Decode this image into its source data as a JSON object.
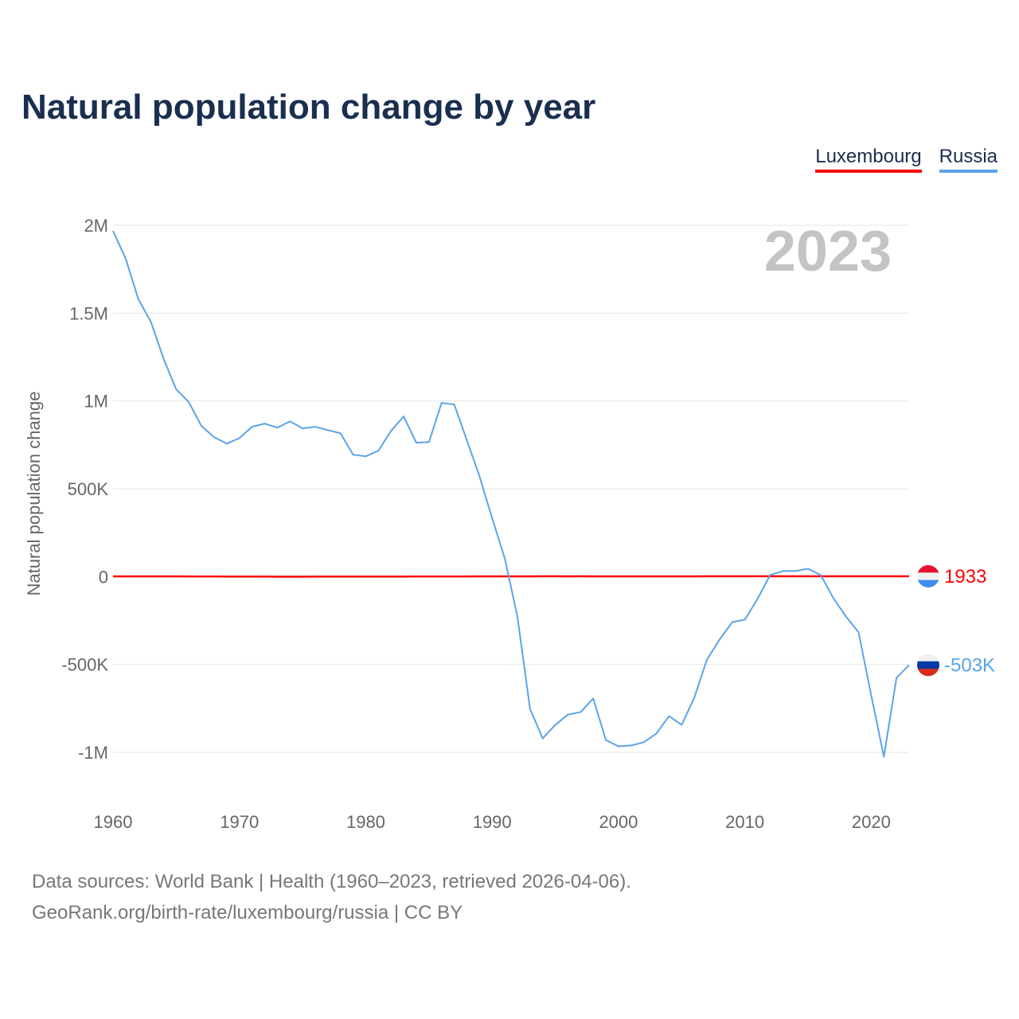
{
  "title": "Natural population change by year",
  "legend": [
    {
      "name": "Luxembourg",
      "color": "#ff0000"
    },
    {
      "name": "Russia",
      "color": "#5ba4e8"
    }
  ],
  "year_watermark": "2023",
  "footer": {
    "line1": "Data sources: World Bank | Health (1960–2023, retrieved 2026-04-06).",
    "line2": "GeoRank.org/birth-rate/luxembourg/russia | CC BY"
  },
  "chart_data": {
    "type": "line",
    "title": "Natural population change by year",
    "xlabel": "",
    "ylabel": "Natural population change",
    "xlim": [
      1960,
      2023
    ],
    "ylim": [
      -1000000,
      2000000
    ],
    "x_ticks": [
      1960,
      1970,
      1980,
      1990,
      2000,
      2010,
      2020
    ],
    "y_ticks": [
      {
        "v": 2000000,
        "label": "2M"
      },
      {
        "v": 1500000,
        "label": "1.5M"
      },
      {
        "v": 1000000,
        "label": "1M"
      },
      {
        "v": 500000,
        "label": "500K"
      },
      {
        "v": 0,
        "label": "0"
      },
      {
        "v": -500000,
        "label": "-500K"
      },
      {
        "v": -1000000,
        "label": "-1M"
      }
    ],
    "x": [
      1960,
      1961,
      1962,
      1963,
      1964,
      1965,
      1966,
      1967,
      1968,
      1969,
      1970,
      1971,
      1972,
      1973,
      1974,
      1975,
      1976,
      1977,
      1978,
      1979,
      1980,
      1981,
      1982,
      1983,
      1984,
      1985,
      1986,
      1987,
      1988,
      1989,
      1990,
      1991,
      1992,
      1993,
      1994,
      1995,
      1996,
      1997,
      1998,
      1999,
      2000,
      2001,
      2002,
      2003,
      2004,
      2005,
      2006,
      2007,
      2008,
      2009,
      2010,
      2011,
      2012,
      2013,
      2014,
      2015,
      2016,
      2017,
      2018,
      2019,
      2020,
      2021,
      2022,
      2023
    ],
    "series": [
      {
        "name": "Luxembourg",
        "color": "#ff0000",
        "end_label": "1933",
        "values": [
          1600,
          1500,
          1400,
          1500,
          1500,
          1400,
          1200,
          1000,
          800,
          500,
          300,
          200,
          100,
          0,
          0,
          50,
          100,
          100,
          150,
          300,
          400,
          500,
          600,
          600,
          700,
          800,
          900,
          1100,
          1200,
          1400,
          1500,
          1600,
          1700,
          1700,
          1800,
          1800,
          1700,
          1800,
          1700,
          1700,
          1600,
          1600,
          1500,
          1300,
          1700,
          1700,
          1700,
          1800,
          1900,
          1800,
          1900,
          1800,
          1800,
          2000,
          2100,
          2000,
          2100,
          1900,
          1900,
          2000,
          2300,
          2300,
          2100,
          1933
        ]
      },
      {
        "name": "Russia",
        "color": "#5ba4e8",
        "end_label": "-503K",
        "values": [
          1968000,
          1810000,
          1580000,
          1450000,
          1240000,
          1066000,
          993000,
          857000,
          794000,
          757000,
          789000,
          853000,
          871000,
          848000,
          884000,
          844000,
          853000,
          834000,
          816000,
          694000,
          685000,
          717000,
          830000,
          912000,
          762000,
          766000,
          989000,
          980000,
          776000,
          571000,
          333000,
          104000,
          -227000,
          -753000,
          -921000,
          -844000,
          -785000,
          -771000,
          -694000,
          -930000,
          -966000,
          -961000,
          -943000,
          -893000,
          -794000,
          -844000,
          -689000,
          -472000,
          -358000,
          -259000,
          -245000,
          -127000,
          9000,
          32000,
          32000,
          45000,
          9000,
          -122000,
          -227000,
          -317000,
          -676000,
          -1025000,
          -576000,
          -503000
        ]
      }
    ]
  }
}
